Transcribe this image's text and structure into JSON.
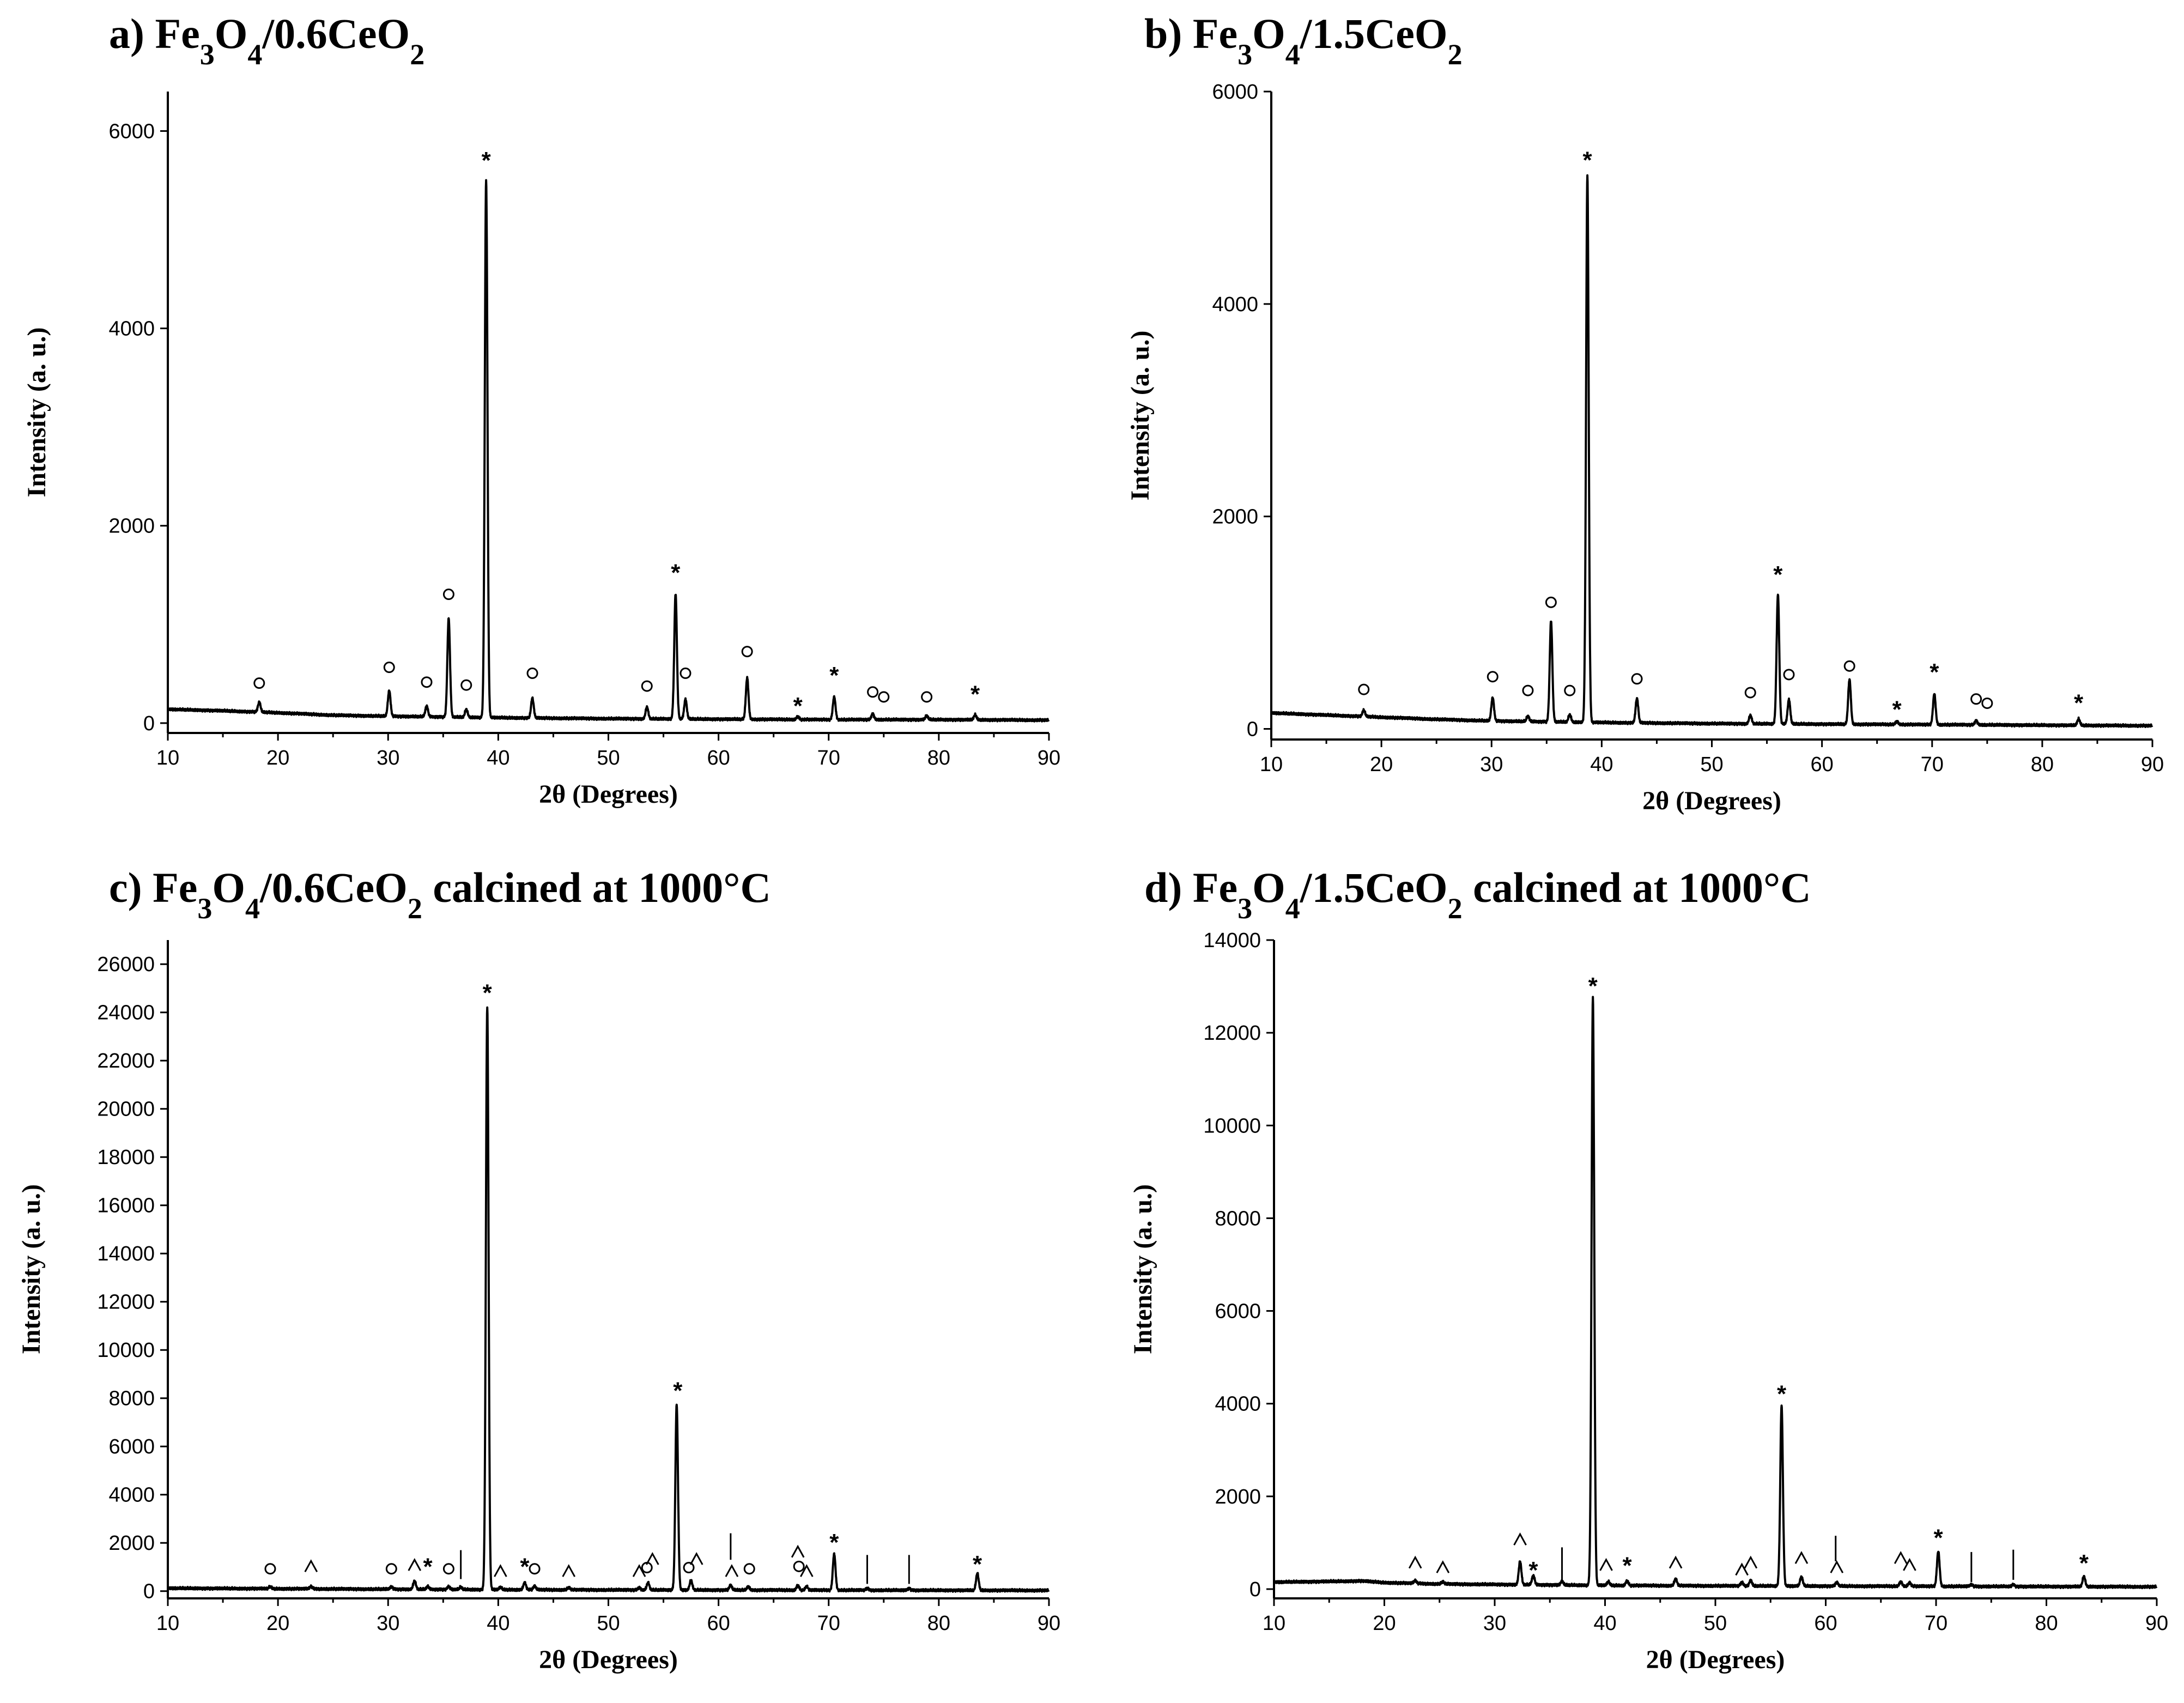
{
  "chart_data": [
    {
      "type": "line",
      "panel": "a",
      "title": "a) Fe3O4/0.6CeO2",
      "title_parts": [
        {
          "t": "a) Fe",
          "sub": false
        },
        {
          "t": "3",
          "sub": true
        },
        {
          "t": "O",
          "sub": false
        },
        {
          "t": "4",
          "sub": true
        },
        {
          "t": "/0.6CeO",
          "sub": false
        },
        {
          "t": "2",
          "sub": true
        }
      ],
      "xlabel": "2θ (Degrees)",
      "ylabel": "Intensity (a. u.)",
      "xlim": [
        10,
        90
      ],
      "ylim": [
        -100,
        6400
      ],
      "xticks": [
        10,
        20,
        30,
        40,
        50,
        60,
        70,
        80,
        90
      ],
      "yticks": [
        0,
        2000,
        4000,
        6000
      ],
      "baseline": [
        [
          10,
          140
        ],
        [
          15,
          125
        ],
        [
          20,
          105
        ],
        [
          25,
          80
        ],
        [
          30,
          70
        ],
        [
          40,
          55
        ],
        [
          50,
          45
        ],
        [
          60,
          40
        ],
        [
          70,
          35
        ],
        [
          80,
          35
        ],
        [
          90,
          30
        ]
      ],
      "peaks": [
        [
          18.3,
          100
        ],
        [
          30.1,
          260
        ],
        [
          33.5,
          110
        ],
        [
          35.5,
          1000
        ],
        [
          37.1,
          80
        ],
        [
          38.9,
          5450
        ],
        [
          43.1,
          200
        ],
        [
          53.5,
          120
        ],
        [
          56.1,
          1270
        ],
        [
          57.0,
          200
        ],
        [
          62.6,
          420
        ],
        [
          67.2,
          30
        ],
        [
          70.5,
          230
        ],
        [
          74.0,
          60
        ],
        [
          78.9,
          40
        ],
        [
          83.3,
          50
        ]
      ],
      "markers": [
        {
          "x": 18.3,
          "y": 350,
          "s": "○"
        },
        {
          "x": 30.1,
          "y": 510,
          "s": "○"
        },
        {
          "x": 33.5,
          "y": 360,
          "s": "○"
        },
        {
          "x": 35.5,
          "y": 1250,
          "s": "○"
        },
        {
          "x": 37.1,
          "y": 330,
          "s": "○"
        },
        {
          "x": 38.9,
          "y": 5700,
          "s": "*"
        },
        {
          "x": 43.1,
          "y": 450,
          "s": "○"
        },
        {
          "x": 53.5,
          "y": 320,
          "s": "○"
        },
        {
          "x": 56.1,
          "y": 1520,
          "s": "*"
        },
        {
          "x": 57.0,
          "y": 450,
          "s": "○"
        },
        {
          "x": 62.6,
          "y": 670,
          "s": "○"
        },
        {
          "x": 67.2,
          "y": 170,
          "s": "*"
        },
        {
          "x": 70.5,
          "y": 480,
          "s": "*"
        },
        {
          "x": 74.0,
          "y": 260,
          "s": "○"
        },
        {
          "x": 75.0,
          "y": 210,
          "s": "○"
        },
        {
          "x": 78.9,
          "y": 210,
          "s": "○"
        },
        {
          "x": 83.3,
          "y": 290,
          "s": "*"
        }
      ]
    },
    {
      "type": "line",
      "panel": "b",
      "title": "b) Fe3O4/1.5CeO2",
      "title_parts": [
        {
          "t": "b) Fe",
          "sub": false
        },
        {
          "t": "3",
          "sub": true
        },
        {
          "t": "O",
          "sub": false
        },
        {
          "t": "4",
          "sub": true
        },
        {
          "t": "/1.5CeO",
          "sub": false
        },
        {
          "t": "2",
          "sub": true
        }
      ],
      "xlabel": "2θ (Degrees)",
      "ylabel": "Intensity (a. u.)",
      "xlim": [
        10,
        90
      ],
      "ylim": [
        -100,
        6000
      ],
      "xticks": [
        10,
        20,
        30,
        40,
        50,
        60,
        70,
        80,
        90
      ],
      "yticks": [
        0,
        2000,
        4000,
        6000
      ],
      "baseline": [
        [
          10,
          150
        ],
        [
          15,
          130
        ],
        [
          20,
          110
        ],
        [
          25,
          90
        ],
        [
          30,
          75
        ],
        [
          40,
          60
        ],
        [
          50,
          50
        ],
        [
          60,
          45
        ],
        [
          70,
          40
        ],
        [
          80,
          35
        ],
        [
          90,
          30
        ]
      ],
      "peaks": [
        [
          18.4,
          60
        ],
        [
          30.1,
          220
        ],
        [
          33.3,
          50
        ],
        [
          35.4,
          950
        ],
        [
          37.1,
          70
        ],
        [
          38.7,
          5150
        ],
        [
          43.2,
          230
        ],
        [
          53.5,
          80
        ],
        [
          56.0,
          1220
        ],
        [
          57.0,
          230
        ],
        [
          62.5,
          420
        ],
        [
          66.8,
          30
        ],
        [
          70.2,
          290
        ],
        [
          74.0,
          40
        ],
        [
          83.3,
          60
        ]
      ],
      "markers": [
        {
          "x": 18.4,
          "y": 320,
          "s": "○"
        },
        {
          "x": 30.1,
          "y": 440,
          "s": "○"
        },
        {
          "x": 33.3,
          "y": 310,
          "s": "○"
        },
        {
          "x": 35.4,
          "y": 1140,
          "s": "○"
        },
        {
          "x": 37.1,
          "y": 310,
          "s": "○"
        },
        {
          "x": 38.7,
          "y": 5350,
          "s": "*"
        },
        {
          "x": 43.2,
          "y": 420,
          "s": "○"
        },
        {
          "x": 53.5,
          "y": 290,
          "s": "○"
        },
        {
          "x": 56.0,
          "y": 1450,
          "s": "*"
        },
        {
          "x": 57.0,
          "y": 460,
          "s": "○"
        },
        {
          "x": 62.5,
          "y": 540,
          "s": "○"
        },
        {
          "x": 66.8,
          "y": 180,
          "s": "*"
        },
        {
          "x": 70.2,
          "y": 530,
          "s": "*"
        },
        {
          "x": 74.0,
          "y": 230,
          "s": "○"
        },
        {
          "x": 75.0,
          "y": 190,
          "s": "○"
        },
        {
          "x": 83.3,
          "y": 240,
          "s": "*"
        }
      ]
    },
    {
      "type": "line",
      "panel": "c",
      "title": "c) Fe3O4/0.6CeO2 calcined at 1000°C",
      "title_parts": [
        {
          "t": "c) Fe",
          "sub": false
        },
        {
          "t": "3",
          "sub": true
        },
        {
          "t": "O",
          "sub": false
        },
        {
          "t": "4",
          "sub": true
        },
        {
          "t": "/0.6CeO",
          "sub": false
        },
        {
          "t": "2",
          "sub": true
        },
        {
          "t": " calcined at 1000°C",
          "sub": false
        }
      ],
      "xlabel": "2θ (Degrees)",
      "ylabel": "Intensity (a. u.)",
      "xlim": [
        10,
        90
      ],
      "ylim": [
        -300,
        27000
      ],
      "xticks": [
        10,
        20,
        30,
        40,
        50,
        60,
        70,
        80,
        90
      ],
      "yticks": [
        0,
        2000,
        4000,
        6000,
        8000,
        10000,
        12000,
        14000,
        16000,
        18000,
        20000,
        22000,
        24000,
        26000
      ],
      "baseline": [
        [
          10,
          120
        ],
        [
          20,
          100
        ],
        [
          30,
          80
        ],
        [
          40,
          60
        ],
        [
          50,
          50
        ],
        [
          60,
          45
        ],
        [
          70,
          40
        ],
        [
          80,
          35
        ],
        [
          90,
          30
        ]
      ],
      "peaks": [
        [
          19.3,
          80
        ],
        [
          23.0,
          100
        ],
        [
          30.3,
          100
        ],
        [
          32.4,
          350
        ],
        [
          33.6,
          120
        ],
        [
          35.5,
          120
        ],
        [
          36.6,
          100
        ],
        [
          39.0,
          24200
        ],
        [
          40.2,
          100
        ],
        [
          42.4,
          300
        ],
        [
          43.3,
          150
        ],
        [
          46.4,
          100
        ],
        [
          52.8,
          100
        ],
        [
          53.6,
          300
        ],
        [
          56.2,
          7700
        ],
        [
          57.5,
          400
        ],
        [
          61.1,
          200
        ],
        [
          62.7,
          150
        ],
        [
          67.2,
          200
        ],
        [
          68.0,
          150
        ],
        [
          70.5,
          1500
        ],
        [
          73.5,
          80
        ],
        [
          77.3,
          80
        ],
        [
          83.5,
          700
        ]
      ],
      "markers": [
        {
          "x": 19.3,
          "y": 700,
          "s": "○"
        },
        {
          "x": 23.0,
          "y": 800,
          "s": "^"
        },
        {
          "x": 30.3,
          "y": 700,
          "s": "○"
        },
        {
          "x": 32.4,
          "y": 850,
          "s": "^"
        },
        {
          "x": 33.6,
          "y": 1000,
          "s": "*"
        },
        {
          "x": 35.5,
          "y": 700,
          "s": "○"
        },
        {
          "x": 39.0,
          "y": 24800,
          "s": "*"
        },
        {
          "x": 40.2,
          "y": 600,
          "s": "^"
        },
        {
          "x": 42.4,
          "y": 1000,
          "s": "*"
        },
        {
          "x": 43.3,
          "y": 700,
          "s": "○"
        },
        {
          "x": 46.4,
          "y": 600,
          "s": "^"
        },
        {
          "x": 52.8,
          "y": 600,
          "s": "^"
        },
        {
          "x": 53.5,
          "y": 750,
          "s": "○"
        },
        {
          "x": 54.0,
          "y": 1100,
          "s": "^"
        },
        {
          "x": 56.3,
          "y": 8300,
          "s": "*"
        },
        {
          "x": 57.3,
          "y": 750,
          "s": "○"
        },
        {
          "x": 58.0,
          "y": 1100,
          "s": "^"
        },
        {
          "x": 61.2,
          "y": 600,
          "s": "^"
        },
        {
          "x": 62.8,
          "y": 700,
          "s": "○"
        },
        {
          "x": 67.2,
          "y": 1400,
          "s": "^"
        },
        {
          "x": 67.3,
          "y": 800,
          "s": "○"
        },
        {
          "x": 68.0,
          "y": 600,
          "s": "^"
        },
        {
          "x": 70.5,
          "y": 2000,
          "s": "*"
        },
        {
          "x": 83.5,
          "y": 1100,
          "s": "*"
        }
      ],
      "bars": [
        {
          "x": 36.6,
          "y0": 500,
          "y1": 1700
        },
        {
          "x": 61.1,
          "y0": 1300,
          "y1": 2400
        },
        {
          "x": 73.5,
          "y0": 300,
          "y1": 1500
        },
        {
          "x": 77.3,
          "y0": 300,
          "y1": 1500
        }
      ]
    },
    {
      "type": "line",
      "panel": "d",
      "title": "d) Fe3O4/1.5CeO2 calcined at 1000°C",
      "title_parts": [
        {
          "t": "d) Fe",
          "sub": false
        },
        {
          "t": "3",
          "sub": true
        },
        {
          "t": "O",
          "sub": false
        },
        {
          "t": "4",
          "sub": true
        },
        {
          "t": "/1.5CeO",
          "sub": false
        },
        {
          "t": "2",
          "sub": true
        },
        {
          "t": " calcined at 1000°C",
          "sub": false
        }
      ],
      "xlabel": "2θ (Degrees)",
      "ylabel": "Intensity (a. u.)",
      "xlim": [
        10,
        90
      ],
      "ylim": [
        -200,
        14000
      ],
      "xticks": [
        10,
        20,
        30,
        40,
        50,
        60,
        70,
        80,
        90
      ],
      "yticks": [
        0,
        2000,
        4000,
        6000,
        8000,
        10000,
        12000,
        14000
      ],
      "baseline": [
        [
          10,
          150
        ],
        [
          15,
          165
        ],
        [
          18,
          175
        ],
        [
          20,
          140
        ],
        [
          25,
          110
        ],
        [
          30,
          100
        ],
        [
          40,
          80
        ],
        [
          50,
          70
        ],
        [
          60,
          65
        ],
        [
          70,
          60
        ],
        [
          80,
          55
        ],
        [
          90,
          50
        ]
      ],
      "peaks": [
        [
          22.8,
          60
        ],
        [
          25.3,
          50
        ],
        [
          32.3,
          500
        ],
        [
          33.5,
          200
        ],
        [
          36.1,
          80
        ],
        [
          38.9,
          12700
        ],
        [
          40.3,
          80
        ],
        [
          42.0,
          100
        ],
        [
          46.4,
          150
        ],
        [
          52.4,
          80
        ],
        [
          53.2,
          120
        ],
        [
          56.0,
          3900
        ],
        [
          57.8,
          200
        ],
        [
          61.0,
          80
        ],
        [
          66.8,
          100
        ],
        [
          67.6,
          80
        ],
        [
          70.2,
          750
        ],
        [
          73.2,
          40
        ],
        [
          77.0,
          40
        ],
        [
          83.4,
          220
        ]
      ],
      "markers": [
        {
          "x": 22.8,
          "y": 450,
          "s": "^"
        },
        {
          "x": 25.3,
          "y": 350,
          "s": "^"
        },
        {
          "x": 32.3,
          "y": 950,
          "s": "^"
        },
        {
          "x": 33.5,
          "y": 400,
          "s": "*"
        },
        {
          "x": 38.9,
          "y": 13000,
          "s": "*"
        },
        {
          "x": 40.1,
          "y": 400,
          "s": "^"
        },
        {
          "x": 42.0,
          "y": 500,
          "s": "*"
        },
        {
          "x": 46.4,
          "y": 450,
          "s": "^"
        },
        {
          "x": 52.4,
          "y": 300,
          "s": "^"
        },
        {
          "x": 53.2,
          "y": 450,
          "s": "^"
        },
        {
          "x": 56.0,
          "y": 4200,
          "s": "*"
        },
        {
          "x": 57.8,
          "y": 550,
          "s": "^"
        },
        {
          "x": 61.0,
          "y": 350,
          "s": "^"
        },
        {
          "x": 66.8,
          "y": 550,
          "s": "^"
        },
        {
          "x": 67.6,
          "y": 400,
          "s": "^"
        },
        {
          "x": 70.2,
          "y": 1100,
          "s": "*"
        },
        {
          "x": 83.4,
          "y": 550,
          "s": "*"
        }
      ],
      "bars": [
        {
          "x": 36.1,
          "y0": 150,
          "y1": 900
        },
        {
          "x": 60.9,
          "y0": 600,
          "y1": 1150
        },
        {
          "x": 73.2,
          "y0": 150,
          "y1": 800
        },
        {
          "x": 77.0,
          "y0": 200,
          "y1": 850
        }
      ]
    }
  ]
}
